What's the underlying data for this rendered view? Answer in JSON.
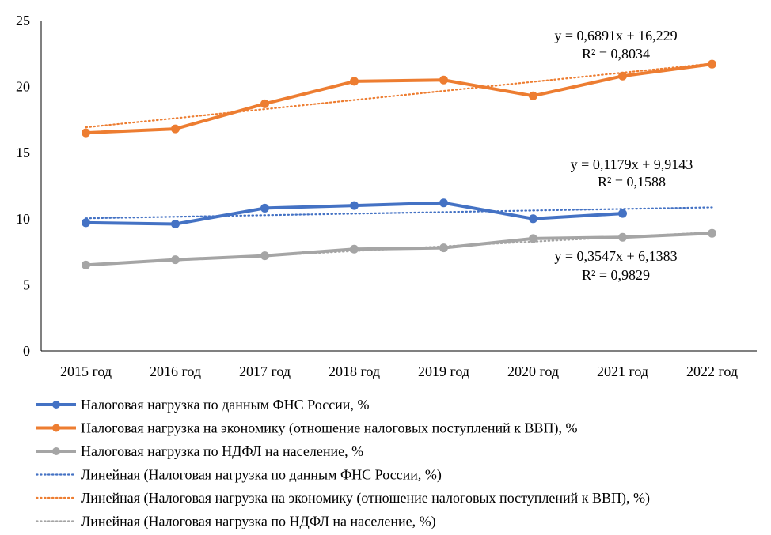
{
  "chart_data": {
    "type": "line",
    "title": "",
    "xlabel": "",
    "ylabel": "",
    "categories": [
      "2015 год",
      "2016 год",
      "2017 год",
      "2018 год",
      "2019 год",
      "2020 год",
      "2021 год",
      "2022 год"
    ],
    "ylim": [
      0,
      25
    ],
    "yticks": [
      0,
      5,
      10,
      15,
      20,
      25
    ],
    "grid": false,
    "legend_position": "bottom",
    "series": [
      {
        "name": "Налоговая нагрузка  по данным ФНС России, %",
        "color": "#4472C4",
        "values": [
          9.7,
          9.6,
          10.8,
          11.0,
          11.2,
          10.0,
          10.4,
          null
        ],
        "trendline": {
          "name": "Линейная (Налоговая нагрузка  по данным ФНС России, %)",
          "slope": 0.1179,
          "intercept": 9.9143,
          "equation": "y = 0,1179x + 9,9143",
          "r2": "R² = 0,1588"
        }
      },
      {
        "name": "Налоговая нагрузка  на экономику  (отношение налоговых поступлений  к ВВП), %",
        "color": "#ED7D31",
        "values": [
          16.5,
          16.8,
          18.7,
          20.4,
          20.5,
          19.3,
          20.8,
          21.7
        ],
        "trendline": {
          "name": "Линейная (Налоговая нагрузка  на экономику  (отношение налоговых поступлений  к ВВП), %)",
          "slope": 0.6891,
          "intercept": 16.229,
          "equation": "y = 0,6891x + 16,229",
          "r2": "R² = 0,8034"
        }
      },
      {
        "name": "Налоговая нагрузка  по НДФЛ на население,  %",
        "color": "#A5A5A5",
        "values": [
          6.5,
          6.9,
          7.2,
          7.7,
          7.8,
          8.5,
          8.6,
          8.9
        ],
        "trendline": {
          "name": "Линейная (Налоговая нагрузка  по НДФЛ на население,  %)",
          "slope": 0.3547,
          "intercept": 6.1383,
          "equation": "y = 0,3547x + 6,1383",
          "r2": "R² = 0,9829"
        }
      }
    ]
  }
}
